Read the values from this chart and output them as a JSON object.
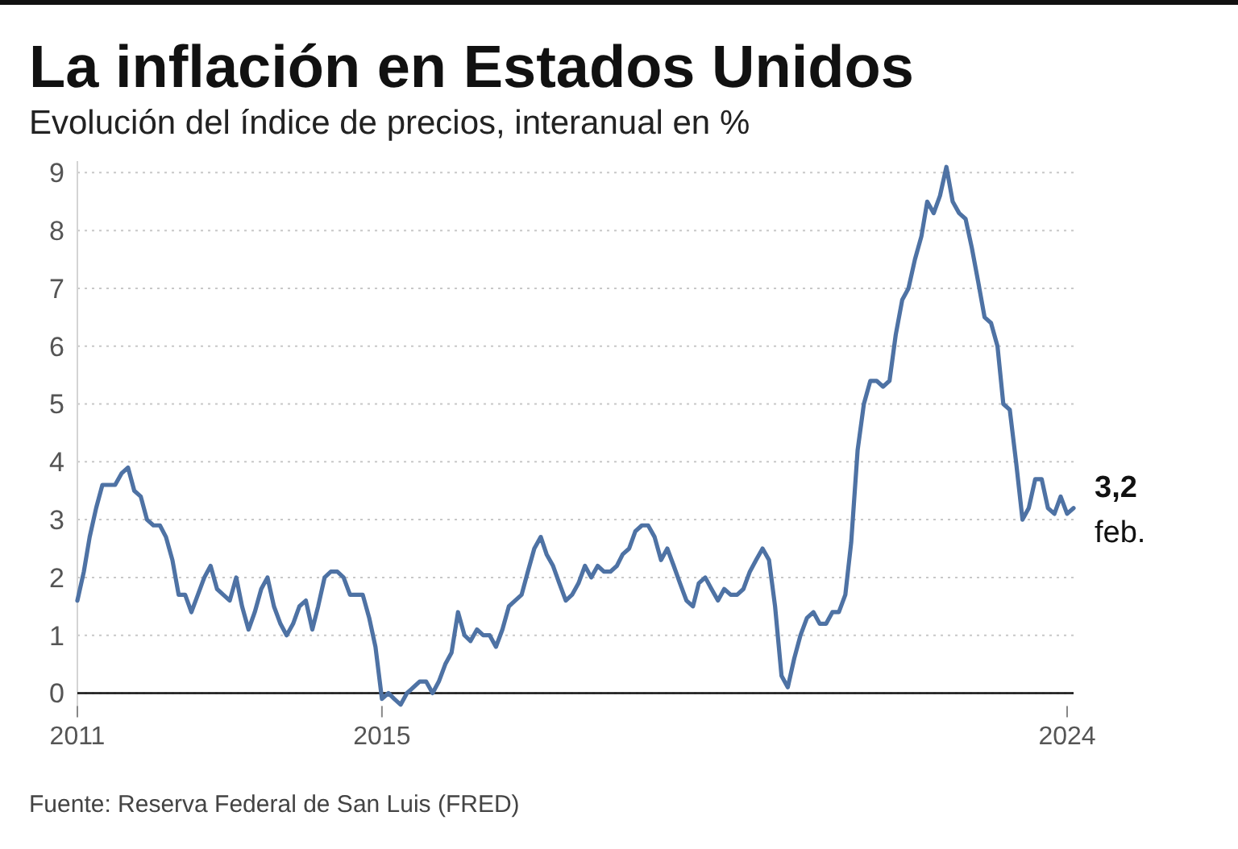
{
  "chart_data": {
    "type": "line",
    "title": "La inflación en Estados Unidos",
    "subtitle": "Evolución del índice de precios, interanual en %",
    "x": [
      "2011-01",
      "2011-02",
      "2011-03",
      "2011-04",
      "2011-05",
      "2011-06",
      "2011-07",
      "2011-08",
      "2011-09",
      "2011-10",
      "2011-11",
      "2011-12",
      "2012-01",
      "2012-02",
      "2012-03",
      "2012-04",
      "2012-05",
      "2012-06",
      "2012-07",
      "2012-08",
      "2012-09",
      "2012-10",
      "2012-11",
      "2012-12",
      "2013-01",
      "2013-02",
      "2013-03",
      "2013-04",
      "2013-05",
      "2013-06",
      "2013-07",
      "2013-08",
      "2013-09",
      "2013-10",
      "2013-11",
      "2013-12",
      "2014-01",
      "2014-02",
      "2014-03",
      "2014-04",
      "2014-05",
      "2014-06",
      "2014-07",
      "2014-08",
      "2014-09",
      "2014-10",
      "2014-11",
      "2014-12",
      "2015-01",
      "2015-02",
      "2015-03",
      "2015-04",
      "2015-05",
      "2015-06",
      "2015-07",
      "2015-08",
      "2015-09",
      "2015-10",
      "2015-11",
      "2015-12",
      "2016-01",
      "2016-02",
      "2016-03",
      "2016-04",
      "2016-05",
      "2016-06",
      "2016-07",
      "2016-08",
      "2016-09",
      "2016-10",
      "2016-11",
      "2016-12",
      "2017-01",
      "2017-02",
      "2017-03",
      "2017-04",
      "2017-05",
      "2017-06",
      "2017-07",
      "2017-08",
      "2017-09",
      "2017-10",
      "2017-11",
      "2017-12",
      "2018-01",
      "2018-02",
      "2018-03",
      "2018-04",
      "2018-05",
      "2018-06",
      "2018-07",
      "2018-08",
      "2018-09",
      "2018-10",
      "2018-11",
      "2018-12",
      "2019-01",
      "2019-02",
      "2019-03",
      "2019-04",
      "2019-05",
      "2019-06",
      "2019-07",
      "2019-08",
      "2019-09",
      "2019-10",
      "2019-11",
      "2019-12",
      "2020-01",
      "2020-02",
      "2020-03",
      "2020-04",
      "2020-05",
      "2020-06",
      "2020-07",
      "2020-08",
      "2020-09",
      "2020-10",
      "2020-11",
      "2020-12",
      "2021-01",
      "2021-02",
      "2021-03",
      "2021-04",
      "2021-05",
      "2021-06",
      "2021-07",
      "2021-08",
      "2021-09",
      "2021-10",
      "2021-11",
      "2021-12",
      "2022-01",
      "2022-02",
      "2022-03",
      "2022-04",
      "2022-05",
      "2022-06",
      "2022-07",
      "2022-08",
      "2022-09",
      "2022-10",
      "2022-11",
      "2022-12",
      "2023-01",
      "2023-02",
      "2023-03",
      "2023-04",
      "2023-05",
      "2023-06",
      "2023-07",
      "2023-08",
      "2023-09",
      "2023-10",
      "2023-11",
      "2023-12",
      "2024-01",
      "2024-02"
    ],
    "values": [
      1.6,
      2.1,
      2.7,
      3.2,
      3.6,
      3.6,
      3.6,
      3.8,
      3.9,
      3.5,
      3.4,
      3.0,
      2.9,
      2.9,
      2.7,
      2.3,
      1.7,
      1.7,
      1.4,
      1.7,
      2.0,
      2.2,
      1.8,
      1.7,
      1.6,
      2.0,
      1.5,
      1.1,
      1.4,
      1.8,
      2.0,
      1.5,
      1.2,
      1.0,
      1.2,
      1.5,
      1.6,
      1.1,
      1.5,
      2.0,
      2.1,
      2.1,
      2.0,
      1.7,
      1.7,
      1.7,
      1.3,
      0.8,
      -0.1,
      0.0,
      -0.1,
      -0.2,
      0.0,
      0.1,
      0.2,
      0.2,
      0.0,
      0.2,
      0.5,
      0.7,
      1.4,
      1.0,
      0.9,
      1.1,
      1.0,
      1.0,
      0.8,
      1.1,
      1.5,
      1.6,
      1.7,
      2.1,
      2.5,
      2.7,
      2.4,
      2.2,
      1.9,
      1.6,
      1.7,
      1.9,
      2.2,
      2.0,
      2.2,
      2.1,
      2.1,
      2.2,
      2.4,
      2.5,
      2.8,
      2.9,
      2.9,
      2.7,
      2.3,
      2.5,
      2.2,
      1.9,
      1.6,
      1.5,
      1.9,
      2.0,
      1.8,
      1.6,
      1.8,
      1.7,
      1.7,
      1.8,
      2.1,
      2.3,
      2.5,
      2.3,
      1.5,
      0.3,
      0.1,
      0.6,
      1.0,
      1.3,
      1.4,
      1.2,
      1.2,
      1.4,
      1.4,
      1.7,
      2.6,
      4.2,
      5.0,
      5.4,
      5.4,
      5.3,
      5.4,
      6.2,
      6.8,
      7.0,
      7.5,
      7.9,
      8.5,
      8.3,
      8.6,
      9.1,
      8.5,
      8.3,
      8.2,
      7.7,
      7.1,
      6.5,
      6.4,
      6.0,
      5.0,
      4.9,
      4.0,
      3.0,
      3.2,
      3.7,
      3.7,
      3.2,
      3.1,
      3.4,
      3.1,
      3.2
    ],
    "value_labels": [
      null,
      null,
      null,
      null,
      null,
      null,
      null,
      null,
      null,
      null,
      null,
      null,
      null,
      null,
      null,
      null,
      null,
      null,
      null,
      null,
      null,
      null,
      null,
      null,
      null,
      null,
      null,
      null,
      null,
      null,
      null,
      null,
      null,
      null,
      null,
      null,
      null,
      null,
      null,
      null,
      null,
      null,
      null,
      null,
      null,
      null,
      null,
      null,
      null,
      null,
      null,
      null,
      null,
      null,
      null,
      null,
      null,
      null,
      null,
      null,
      null,
      null,
      null,
      null,
      null,
      null,
      null,
      null,
      null,
      null,
      null,
      null,
      null,
      null,
      null,
      null,
      null,
      null,
      null,
      null,
      null,
      null,
      null,
      null,
      null,
      null,
      null,
      null,
      null,
      null,
      null,
      null,
      null,
      null,
      null,
      null,
      null,
      null,
      null,
      null,
      null,
      null,
      null,
      null,
      null,
      null,
      null,
      null,
      null,
      null,
      null,
      null,
      null,
      null,
      null,
      null,
      null,
      null,
      null,
      null,
      null,
      null,
      null,
      null,
      null,
      null,
      null,
      null,
      null,
      null,
      null,
      null,
      null,
      null,
      null,
      null,
      null,
      null,
      null,
      null,
      null,
      null,
      null,
      null,
      null,
      null,
      null,
      null,
      null,
      null,
      null,
      null,
      null,
      null,
      null,
      null,
      null,
      "3,2"
    ],
    "color": "#4e72a4",
    "xlim": [
      "2011-01",
      "2024-02"
    ],
    "xticks": [
      "2011",
      "2015",
      "2024"
    ],
    "ylim": [
      -0.3,
      9.2
    ],
    "yticks": [
      0,
      1,
      2,
      3,
      4,
      5,
      6,
      7,
      8,
      9
    ],
    "grid": "y",
    "annotations": [
      {
        "text": "feb.",
        "x": "2024-02",
        "y": 3.2
      },
      "Fuente: Reserva Federal de San Luis (FRED)"
    ]
  }
}
